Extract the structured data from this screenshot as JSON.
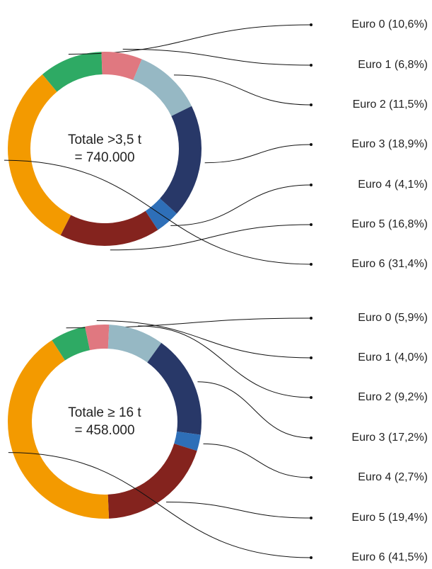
{
  "chart_data": [
    {
      "type": "pie",
      "donut": true,
      "center_label": [
        "Totale >3,5 t",
        "= 740.000"
      ],
      "categories": [
        "Euro 0 (10,6%)",
        "Euro 1 (6,8%)",
        "Euro 2 (11,5%)",
        "Euro 3 (18,9%)",
        "Euro 4 (4,1%)",
        "Euro 5 (16,8%)",
        "Euro 6 (31,4%)"
      ],
      "values": [
        10.6,
        6.8,
        11.5,
        18.9,
        4.1,
        16.8,
        31.4
      ],
      "colors": [
        "#2eaa64",
        "#e07880",
        "#96b8c4",
        "#283868",
        "#2e6fb8",
        "#84231e",
        "#f39a00"
      ]
    },
    {
      "type": "pie",
      "donut": true,
      "center_label": [
        "Totale ≥ 16 t",
        "= 458.000"
      ],
      "categories": [
        "Euro 0 (5,9%)",
        "Euro 1 (4,0%)",
        "Euro 2 (9,2%)",
        "Euro 3 (17,2%)",
        "Euro 4 (2,7%)",
        "Euro 5 (19,4%)",
        "Euro 6 (41,5%)"
      ],
      "values": [
        5.9,
        4.0,
        9.2,
        17.2,
        2.7,
        19.4,
        41.5
      ],
      "colors": [
        "#2eaa64",
        "#e07880",
        "#96b8c4",
        "#283868",
        "#2e6fb8",
        "#84231e",
        "#f39a00"
      ]
    }
  ]
}
